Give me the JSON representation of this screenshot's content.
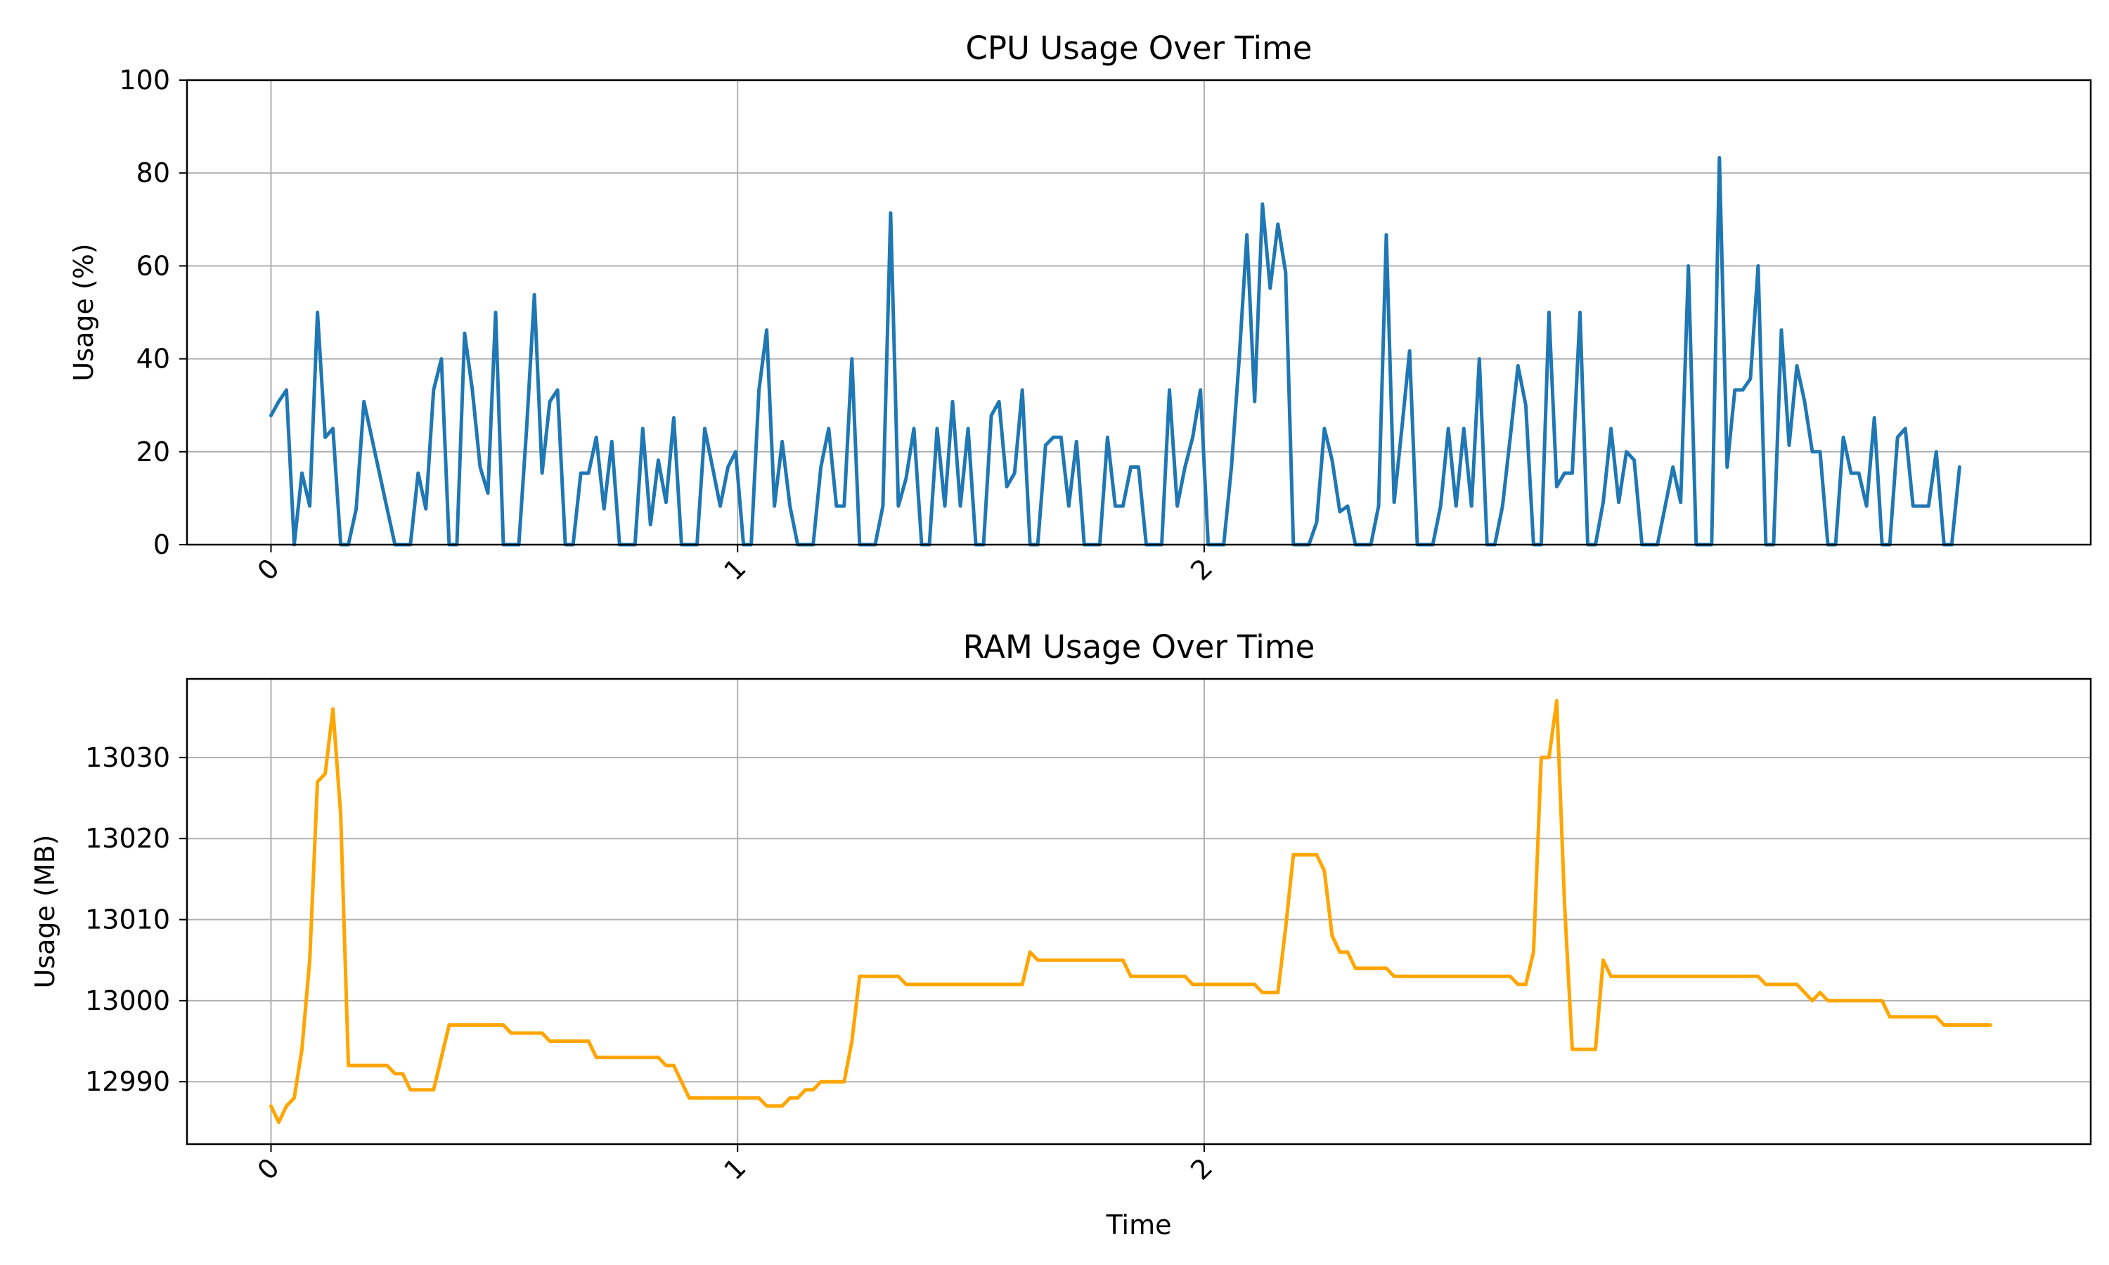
{
  "chart_data": [
    {
      "type": "line",
      "title": "CPU Usage Over Time",
      "xlabel": "",
      "ylabel": "Usage (%)",
      "xlim": [
        -0.18,
        3.9
      ],
      "ylim": [
        0,
        100
      ],
      "xticks": [
        0,
        1,
        2
      ],
      "yticks": [
        0,
        20,
        40,
        60,
        80,
        100
      ],
      "grid": true,
      "color": "#1f77b4",
      "x_start": 0,
      "x_step": 0.0166,
      "values": [
        27.8,
        30.8,
        33.3,
        0,
        15.4,
        8.3,
        50,
        23.1,
        25,
        0,
        0,
        7.7,
        30.8,
        23.1,
        15.4,
        7.7,
        0,
        0,
        0,
        15.4,
        7.7,
        33.3,
        40,
        0,
        0,
        45.5,
        33.3,
        16.7,
        11.1,
        50,
        0,
        0,
        0,
        25,
        53.8,
        15.4,
        30.8,
        33.3,
        0,
        0,
        15.4,
        15.4,
        23.1,
        7.7,
        22.2,
        0,
        0,
        0,
        25,
        4.3,
        18.2,
        9.1,
        27.3,
        0,
        0,
        0,
        25,
        16.7,
        8.3,
        16.7,
        20,
        0,
        0,
        33.3,
        46.2,
        8.3,
        22.2,
        8.3,
        0,
        0,
        0,
        16.7,
        25,
        8.3,
        8.3,
        40,
        0,
        0,
        0,
        8.3,
        71.4,
        8.3,
        14.3,
        25,
        0,
        0,
        25,
        8.3,
        30.8,
        8.3,
        25,
        0,
        0,
        27.8,
        30.8,
        12.5,
        15.4,
        33.3,
        0,
        0,
        21.4,
        23.1,
        23.1,
        8.3,
        22.2,
        0,
        0,
        0,
        23.1,
        8.3,
        8.3,
        16.7,
        16.7,
        0,
        0,
        0,
        33.3,
        8.3,
        16.7,
        23.1,
        33.3,
        0,
        0,
        0,
        16.7,
        40,
        66.7,
        30.8,
        73.3,
        55.2,
        69,
        58.6,
        0,
        0,
        0,
        4.8,
        25,
        18.2,
        7.1,
        8.3,
        0,
        0,
        0,
        8.3,
        66.7,
        9.1,
        25,
        41.7,
        0,
        0,
        0,
        8.3,
        25,
        8.3,
        25,
        8.3,
        40,
        0,
        0,
        8.3,
        23.1,
        38.5,
        30,
        0,
        0,
        50,
        12.5,
        15.4,
        15.4,
        50,
        0,
        0,
        9.1,
        25,
        9.1,
        20,
        18.2,
        0,
        0,
        0,
        8.3,
        16.7,
        9.1,
        60,
        0,
        0,
        0,
        83.3,
        16.7,
        33.3,
        33.3,
        35.7,
        60,
        0,
        0,
        46.2,
        21.4,
        38.5,
        30.8,
        20,
        20,
        0,
        0,
        23.1,
        15.4,
        15.4,
        8.3,
        27.3,
        0,
        0,
        23.1,
        25,
        8.3,
        8.3,
        8.3,
        20,
        0,
        0,
        16.7
      ]
    },
    {
      "type": "line",
      "title": "RAM Usage Over Time",
      "xlabel": "Time",
      "ylabel": "Usage (MB)",
      "xlim": [
        -0.18,
        3.9
      ],
      "ylim": [
        12982.3,
        13039.7
      ],
      "xticks": [
        0,
        1,
        2
      ],
      "yticks": [
        12990,
        13000,
        13010,
        13020,
        13030
      ],
      "grid": true,
      "color": "#ffa500",
      "x_start": 0,
      "x_step": 0.0166,
      "values": [
        12987,
        12985,
        12987,
        12988,
        12994,
        13005,
        13027,
        13028,
        13036,
        13023,
        12992,
        12992,
        12992,
        12992,
        12992,
        12992,
        12991,
        12991,
        12989,
        12989,
        12989,
        12989,
        12993,
        12997,
        12997,
        12997,
        12997,
        12997,
        12997,
        12997,
        12997,
        12996,
        12996,
        12996,
        12996,
        12996,
        12995,
        12995,
        12995,
        12995,
        12995,
        12995,
        12993,
        12993,
        12993,
        12993,
        12993,
        12993,
        12993,
        12993,
        12993,
        12992,
        12992,
        12990,
        12988,
        12988,
        12988,
        12988,
        12988,
        12988,
        12988,
        12988,
        12988,
        12988,
        12987,
        12987,
        12987,
        12988,
        12988,
        12989,
        12989,
        12990,
        12990,
        12990,
        12990,
        12995,
        13003,
        13003,
        13003,
        13003,
        13003,
        13003,
        13002,
        13002,
        13002,
        13002,
        13002,
        13002,
        13002,
        13002,
        13002,
        13002,
        13002,
        13002,
        13002,
        13002,
        13002,
        13002,
        13006,
        13005,
        13005,
        13005,
        13005,
        13005,
        13005,
        13005,
        13005,
        13005,
        13005,
        13005,
        13005,
        13003,
        13003,
        13003,
        13003,
        13003,
        13003,
        13003,
        13003,
        13002,
        13002,
        13002,
        13002,
        13002,
        13002,
        13002,
        13002,
        13002,
        13001,
        13001,
        13001,
        13009,
        13018,
        13018,
        13018,
        13018,
        13016,
        13008,
        13006,
        13006,
        13004,
        13004,
        13004,
        13004,
        13004,
        13003,
        13003,
        13003,
        13003,
        13003,
        13003,
        13003,
        13003,
        13003,
        13003,
        13003,
        13003,
        13003,
        13003,
        13003,
        13003,
        13002,
        13002,
        13006,
        13030,
        13030,
        13037,
        13012,
        12994,
        12994,
        12994,
        12994,
        13005,
        13003,
        13003,
        13003,
        13003,
        13003,
        13003,
        13003,
        13003,
        13003,
        13003,
        13003,
        13003,
        13003,
        13003,
        13003,
        13003,
        13003,
        13003,
        13003,
        13003,
        13002,
        13002,
        13002,
        13002,
        13002,
        13001,
        13000,
        13001,
        13000,
        13000,
        13000,
        13000,
        13000,
        13000,
        13000,
        13000,
        12998,
        12998,
        12998,
        12998,
        12998,
        12998,
        12998,
        12997,
        12997,
        12997,
        12997,
        12997,
        12997,
        12997
      ]
    }
  ]
}
